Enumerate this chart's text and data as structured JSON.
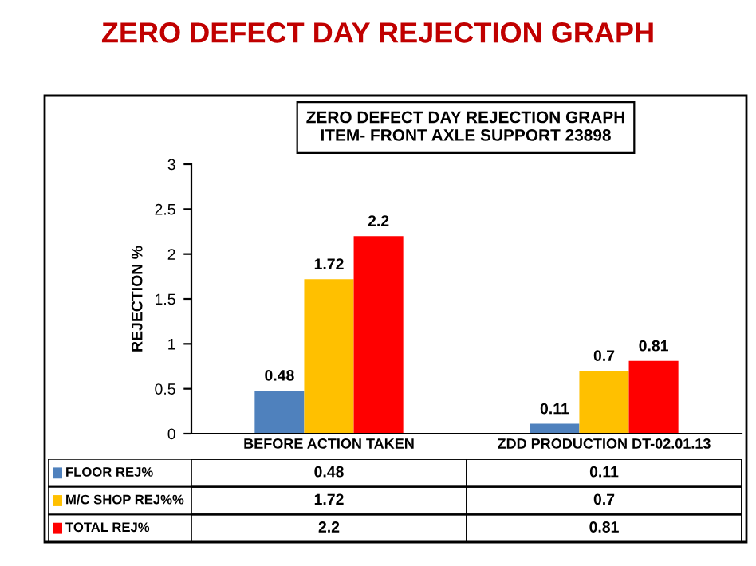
{
  "chart_data": {
    "type": "bar",
    "title": "ZERO DEFECT DAY REJECTION GRAPH",
    "subtitle": "ZERO DEFECT DAY REJECTION GRAPH\nITEM- FRONT AXLE SUPPORT 23898",
    "ylabel": "REJECTION %",
    "categories": [
      "BEFORE ACTION TAKEN",
      "ZDD PRODUCTION DT-02.01.13"
    ],
    "series": [
      {
        "name": "FLOOR REJ%",
        "color": "#4f81bd",
        "values": [
          0.48,
          0.11
        ],
        "value_labels": [
          "0.48",
          "0.11"
        ]
      },
      {
        "name": "M/C SHOP REJ%%",
        "color": "#ffc000",
        "values": [
          1.72,
          0.7
        ],
        "value_labels": [
          "1.72",
          "0.7"
        ]
      },
      {
        "name": "TOTAL REJ%",
        "color": "#ff0000",
        "values": [
          2.2,
          0.81
        ],
        "value_labels": [
          "2.2",
          "0.81"
        ]
      }
    ],
    "ylim": [
      0,
      3
    ],
    "yticks": [
      0,
      0.5,
      1,
      1.5,
      2,
      2.5,
      3
    ],
    "grid": false,
    "legend": "bottom left"
  }
}
